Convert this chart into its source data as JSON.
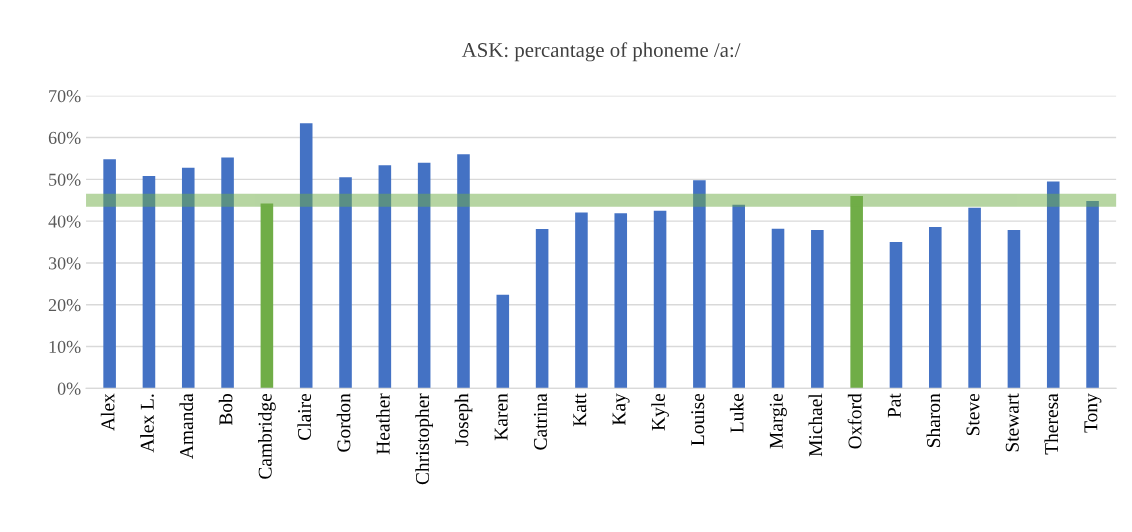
{
  "chart_data": {
    "type": "bar",
    "title": "ASK: percantage of phoneme /a:/",
    "categories": [
      "Alex",
      "Alex L.",
      "Amanda",
      "Bob",
      "Cambridge",
      "Claire",
      "Gordon",
      "Heather",
      "Christopher",
      "Joseph",
      "Karen",
      "Catrina",
      "Katt",
      "Kay",
      "Kyle",
      "Louise",
      "Luke",
      "Margie",
      "Michael",
      "Oxford",
      "Pat",
      "Sharon",
      "Steve",
      "Stewart",
      "Theresa",
      "Tony"
    ],
    "values": [
      54.8,
      50.8,
      52.8,
      55.2,
      44.2,
      63.4,
      50.5,
      53.4,
      54.0,
      56.0,
      22.4,
      38.1,
      42.1,
      41.9,
      42.5,
      49.8,
      43.9,
      38.2,
      37.9,
      46.0,
      35.0,
      38.6,
      43.2,
      37.9,
      49.5,
      44.8
    ],
    "colors": [
      "#4472c4",
      "#4472c4",
      "#4472c4",
      "#4472c4",
      "#70ad47",
      "#4472c4",
      "#4472c4",
      "#4472c4",
      "#4472c4",
      "#4472c4",
      "#4472c4",
      "#4472c4",
      "#4472c4",
      "#4472c4",
      "#4472c4",
      "#4472c4",
      "#4472c4",
      "#4472c4",
      "#4472c4",
      "#70ad47",
      "#4472c4",
      "#4472c4",
      "#4472c4",
      "#4472c4",
      "#4472c4",
      "#4472c4"
    ],
    "ylim": [
      0,
      70
    ],
    "yticks": [
      {
        "value": 0,
        "label": "0%"
      },
      {
        "value": 10,
        "label": "10%"
      },
      {
        "value": 20,
        "label": "20%"
      },
      {
        "value": 30,
        "label": "30%"
      },
      {
        "value": 40,
        "label": "40%"
      },
      {
        "value": 50,
        "label": "50%"
      },
      {
        "value": 60,
        "label": "60%"
      },
      {
        "value": 70,
        "label": "70%"
      }
    ],
    "bands": [
      {
        "axis": "y",
        "from": 43.7,
        "to": 46.3,
        "color": "#70ad47"
      }
    ],
    "grid": "y"
  }
}
